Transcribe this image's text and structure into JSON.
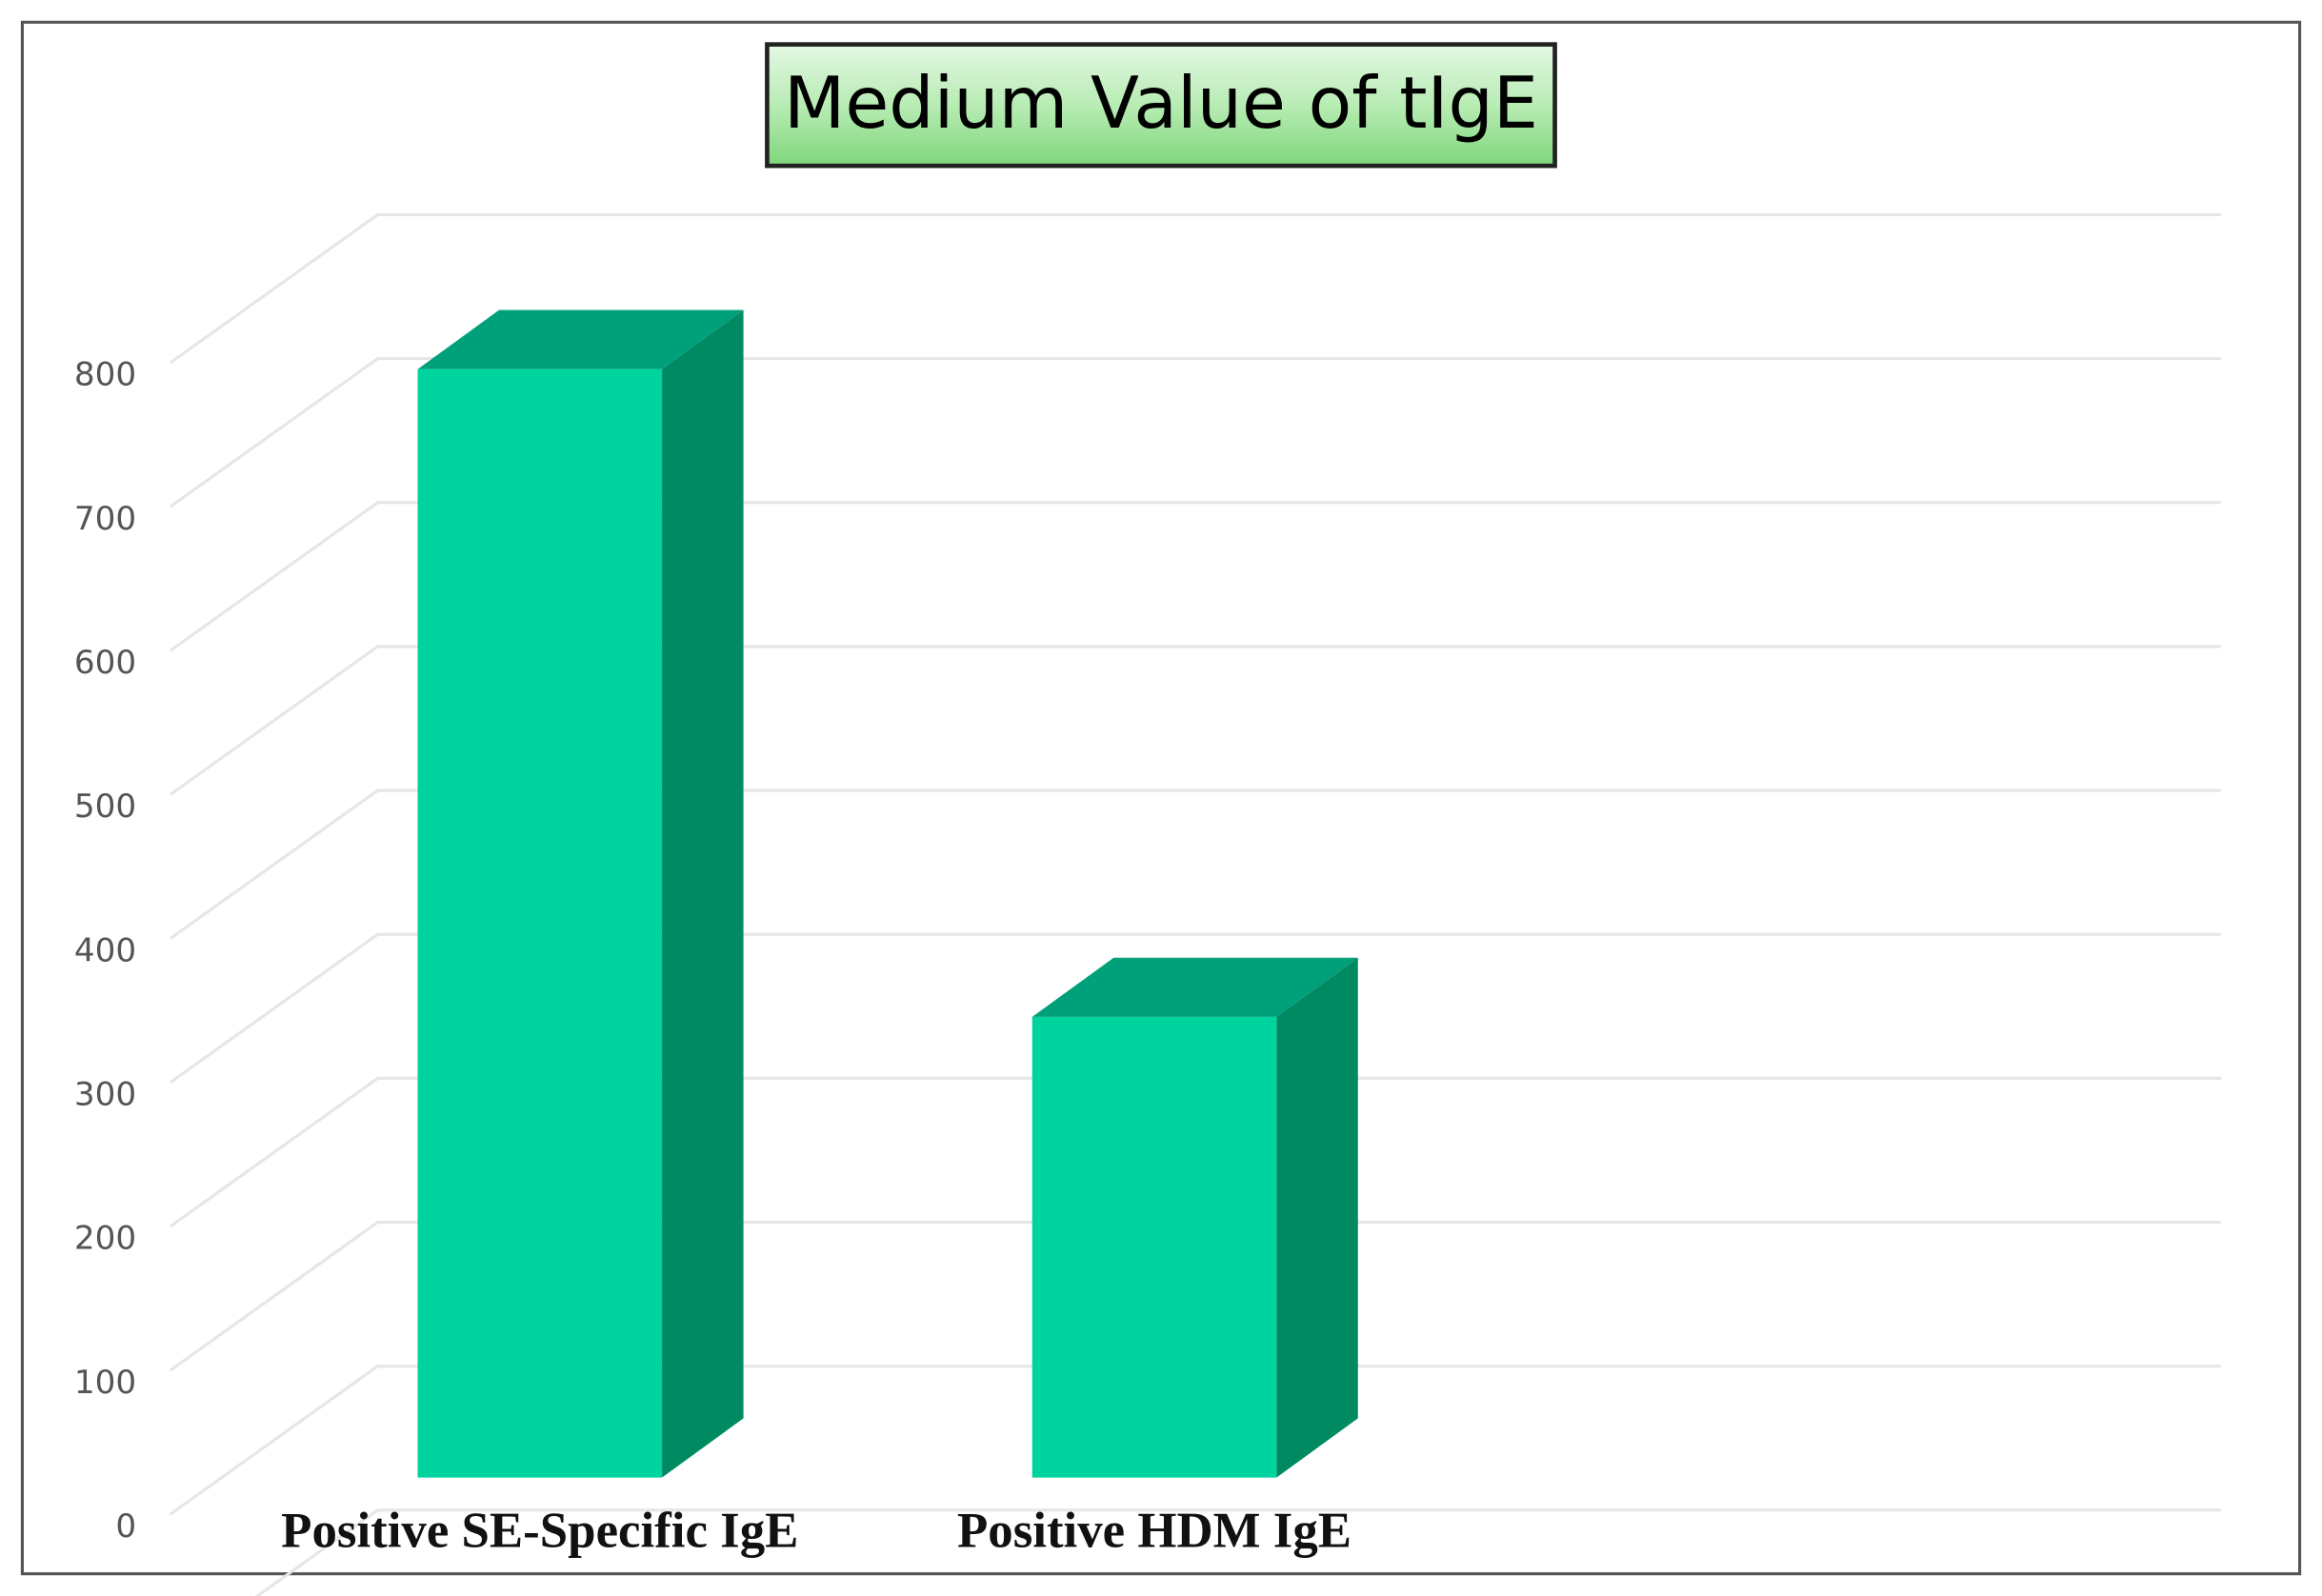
{
  "chart_data": {
    "type": "bar3d",
    "title": "Medium Value of tIgE",
    "categories": [
      "Positive SE-Specific IgE",
      "Positive HDM IgE"
    ],
    "values": [
      770,
      320
    ],
    "color": "#00d49e",
    "ylim": [
      0,
      900
    ],
    "yticks": [
      0,
      100,
      200,
      300,
      400,
      500,
      600,
      700,
      800
    ],
    "grid": true
  }
}
